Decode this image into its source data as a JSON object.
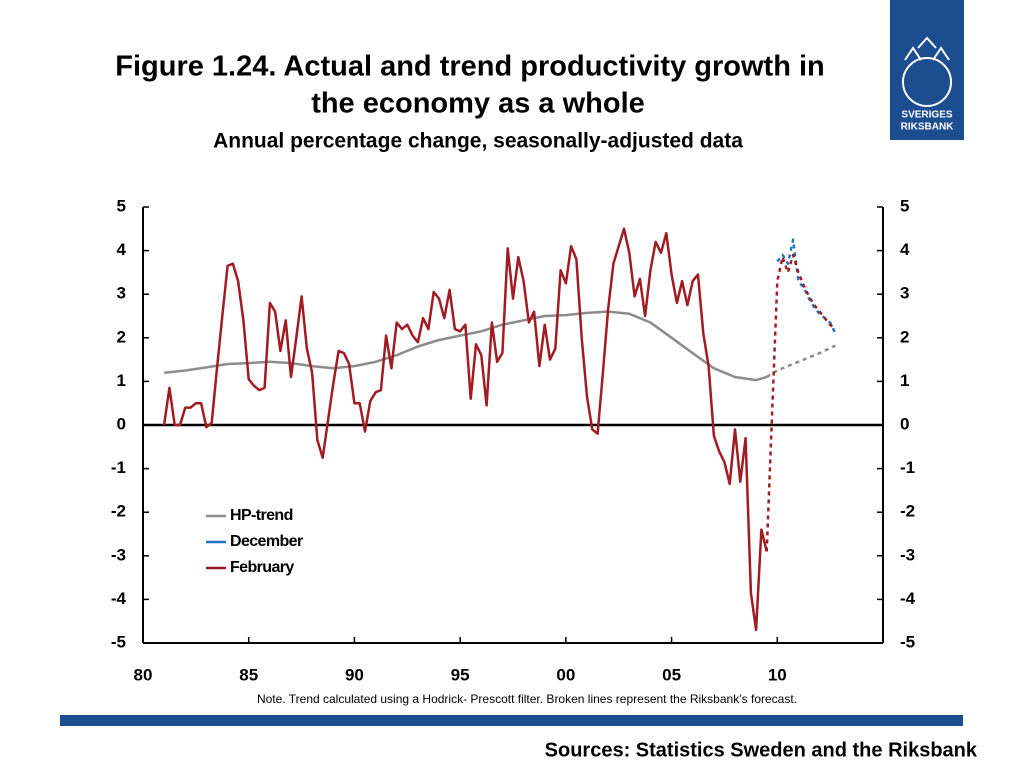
{
  "chart_data": {
    "type": "line",
    "title": "Figure 1.24. Actual and trend productivity growth in",
    "title_line2": "the economy as a whole",
    "subtitle": "Annual percentage change, seasonally-adjusted data",
    "note": "Note. Trend calculated using a Hodrick- Prescott filter. Broken lines represent the Riksbank’s forecast.",
    "sources": "Sources: Statistics Sweden and the Riksbank",
    "logo": [
      "SVERIGES",
      "RIKSBANK"
    ],
    "xlim": [
      1980,
      2015
    ],
    "xticks": [
      {
        "value": 1980,
        "label": "80"
      },
      {
        "value": 1985,
        "label": "85"
      },
      {
        "value": 1990,
        "label": "90"
      },
      {
        "value": 1995,
        "label": "95"
      },
      {
        "value": 2000,
        "label": "00"
      },
      {
        "value": 2005,
        "label": "05"
      },
      {
        "value": 2010,
        "label": "10"
      }
    ],
    "ylim": [
      -5,
      5
    ],
    "yticks": [
      -5,
      -4,
      -3,
      -2,
      -1,
      0,
      1,
      2,
      3,
      4,
      5
    ],
    "y2lim": [
      -5,
      5
    ],
    "y2ticks": [
      -5,
      -4,
      -3,
      -2,
      -1,
      0,
      1,
      2,
      3,
      4,
      5
    ],
    "legend": "lower-left",
    "series": [
      {
        "name": "HP-trend",
        "color": "#8c8c8c",
        "x": [
          1981,
          1982,
          1983,
          1984,
          1985,
          1986,
          1987,
          1988,
          1989,
          1990,
          1991,
          1992,
          1993,
          1994,
          1995,
          1996,
          1997,
          1998,
          1999,
          2000,
          2001,
          2002,
          2003,
          2004,
          2005,
          2006,
          2007,
          2008,
          2009,
          2009.5
        ],
        "values": [
          1.2,
          1.25,
          1.32,
          1.4,
          1.42,
          1.45,
          1.42,
          1.35,
          1.3,
          1.35,
          1.45,
          1.6,
          1.8,
          1.95,
          2.05,
          2.15,
          2.3,
          2.4,
          2.5,
          2.52,
          2.57,
          2.6,
          2.55,
          2.35,
          2.0,
          1.65,
          1.3,
          1.1,
          1.03,
          1.1
        ],
        "forecast": {
          "x": [
            2009.5,
            2010,
            2010.5,
            2011,
            2011.5,
            2012,
            2012.75
          ],
          "values": [
            1.1,
            1.25,
            1.35,
            1.45,
            1.55,
            1.65,
            1.82
          ]
        }
      },
      {
        "name": "December",
        "color": "#1f78c1",
        "forecast": {
          "x": [
            2010,
            2010.25,
            2010.5,
            2010.75,
            2011,
            2011.25,
            2011.5,
            2011.75,
            2012,
            2012.25,
            2012.5,
            2012.75
          ],
          "values": [
            3.75,
            3.9,
            3.7,
            4.25,
            3.3,
            3.15,
            2.9,
            2.7,
            2.55,
            2.45,
            2.35,
            2.1
          ]
        }
      },
      {
        "name": "February",
        "color": "#a01c22",
        "x": [
          1981,
          1981.25,
          1981.5,
          1981.75,
          1982,
          1982.25,
          1982.5,
          1982.75,
          1983,
          1983.25,
          1983.5,
          1983.75,
          1984,
          1984.25,
          1984.5,
          1984.75,
          1985,
          1985.25,
          1985.5,
          1985.75,
          1986,
          1986.25,
          1986.5,
          1986.75,
          1987,
          1987.25,
          1987.5,
          1987.75,
          1988,
          1988.25,
          1988.5,
          1988.75,
          1989,
          1989.25,
          1989.5,
          1989.75,
          1990,
          1990.25,
          1990.5,
          1990.75,
          1991,
          1991.25,
          1991.5,
          1991.75,
          1992,
          1992.25,
          1992.5,
          1992.75,
          1993,
          1993.25,
          1993.5,
          1993.75,
          1994,
          1994.25,
          1994.5,
          1994.75,
          1995,
          1995.25,
          1995.5,
          1995.75,
          1996,
          1996.25,
          1996.5,
          1996.75,
          1997,
          1997.25,
          1997.5,
          1997.75,
          1998,
          1998.25,
          1998.5,
          1998.75,
          1999,
          1999.25,
          1999.5,
          1999.75,
          2000,
          2000.25,
          2000.5,
          2000.75,
          2001,
          2001.25,
          2001.5,
          2001.75,
          2002,
          2002.25,
          2002.5,
          2002.75,
          2003,
          2003.25,
          2003.5,
          2003.75,
          2004,
          2004.25,
          2004.5,
          2004.75,
          2005,
          2005.25,
          2005.5,
          2005.75,
          2006,
          2006.25,
          2006.5,
          2006.75,
          2007,
          2007.25,
          2007.5,
          2007.75,
          2008,
          2008.25,
          2008.5,
          2008.75,
          2009,
          2009.25,
          2009.5
        ],
        "values": [
          0,
          0.85,
          0,
          0,
          0.4,
          0.4,
          0.5,
          0.5,
          -0.05,
          0.05,
          1.3,
          2.5,
          3.65,
          3.7,
          3.3,
          2.4,
          1.05,
          0.9,
          0.8,
          0.85,
          2.8,
          2.6,
          1.7,
          2.4,
          1.1,
          2.0,
          2.95,
          1.75,
          1.2,
          -0.35,
          -0.75,
          0.1,
          0.95,
          1.7,
          1.65,
          1.4,
          0.5,
          0.5,
          -0.15,
          0.55,
          0.75,
          0.8,
          2.05,
          1.3,
          2.35,
          2.2,
          2.3,
          2.05,
          1.9,
          2.45,
          2.2,
          3.05,
          2.9,
          2.45,
          3.1,
          2.2,
          2.15,
          2.3,
          0.6,
          1.85,
          1.6,
          0.45,
          2.35,
          1.45,
          1.65,
          4.05,
          2.9,
          3.85,
          3.3,
          2.35,
          2.6,
          1.35,
          2.3,
          1.5,
          1.75,
          3.55,
          3.25,
          4.1,
          3.8,
          2.0,
          0.65,
          -0.1,
          -0.2,
          1.2,
          2.65,
          3.7,
          4.1,
          4.5,
          3.95,
          2.95,
          3.35,
          2.5,
          3.55,
          4.2,
          3.95,
          4.4,
          3.45,
          2.8,
          3.3,
          2.75,
          3.3,
          3.45,
          2.1,
          1.35,
          -0.25,
          -0.6,
          -0.85,
          -1.35,
          -0.1,
          -1.3,
          -0.3,
          -3.85,
          -4.7,
          -2.4,
          -2.9
        ],
        "forecast": {
          "x": [
            2009.5,
            2009.75,
            2010,
            2010.25,
            2010.5,
            2010.75,
            2011,
            2011.25,
            2011.5,
            2011.75,
            2012,
            2012.25,
            2012.5,
            2012.75
          ],
          "values": [
            -2.9,
            0.2,
            3.3,
            3.85,
            3.5,
            3.9,
            3.5,
            3.2,
            2.95,
            2.75,
            2.6,
            2.45,
            2.3,
            2.2
          ]
        }
      }
    ]
  }
}
